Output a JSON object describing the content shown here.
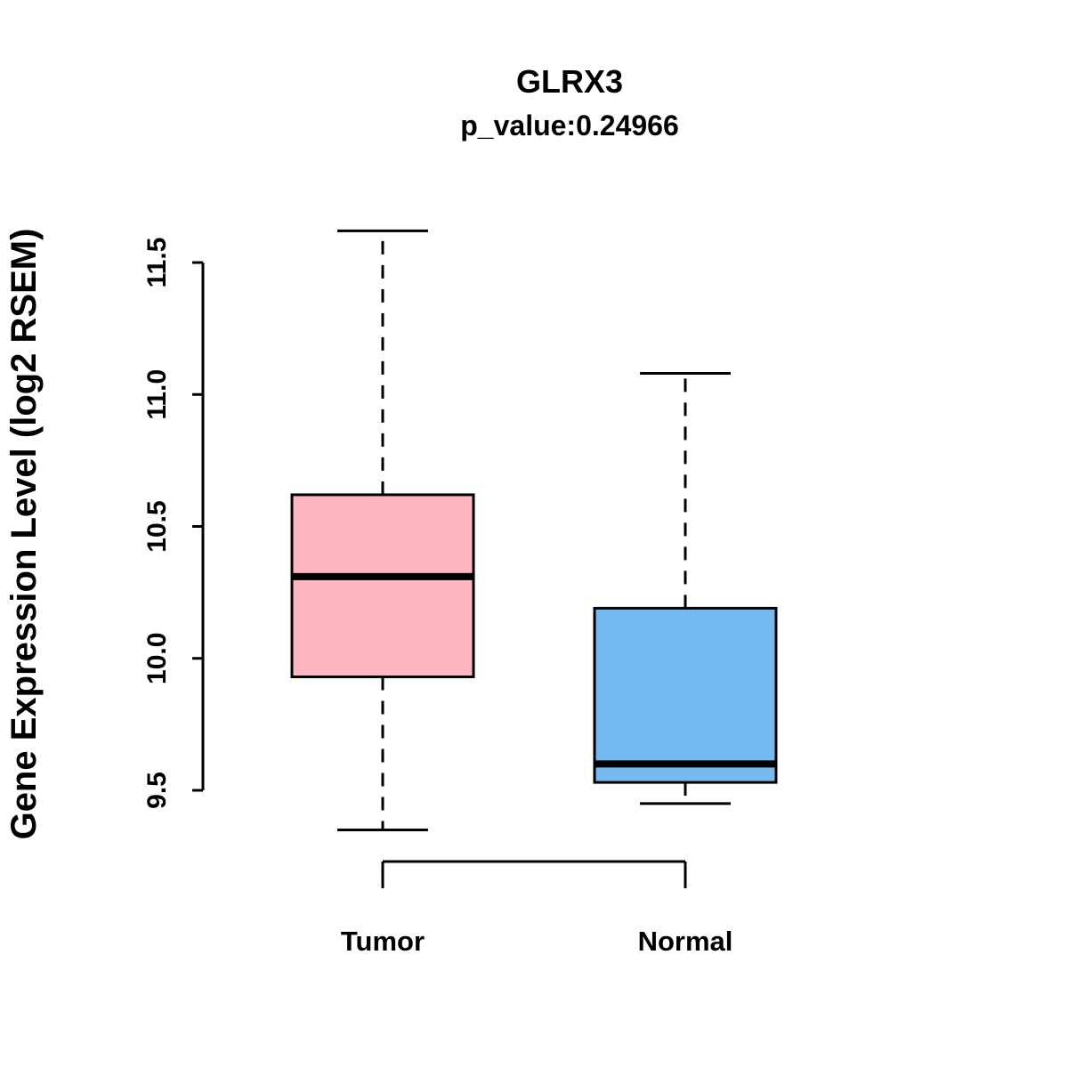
{
  "chart_data": {
    "type": "boxplot",
    "title": "GLRX3",
    "subtitle": "p_value:0.24966",
    "ylabel": "Gene Expression Level (log2 RSEM)",
    "xlabel": "",
    "categories": [
      "Tumor",
      "Normal"
    ],
    "yticks": [
      "9.5",
      "10.0",
      "10.5",
      "11.0",
      "11.5"
    ],
    "ylim": [
      9.3,
      11.65
    ],
    "grid": false,
    "legend": "none",
    "series": [
      {
        "name": "Tumor",
        "color": "#FFB6C1",
        "whisker_low": 9.35,
        "q1": 9.93,
        "median": 10.31,
        "q3": 10.62,
        "whisker_high": 11.62
      },
      {
        "name": "Normal",
        "color": "#74B9F0",
        "whisker_low": 9.45,
        "q1": 9.53,
        "median": 9.6,
        "q3": 10.19,
        "whisker_high": 11.08
      }
    ],
    "colors": {
      "tumor_box": "#FFB6C1",
      "normal_box": "#74B9F0",
      "stroke": "#000000",
      "background": "#FFFFFF"
    }
  }
}
